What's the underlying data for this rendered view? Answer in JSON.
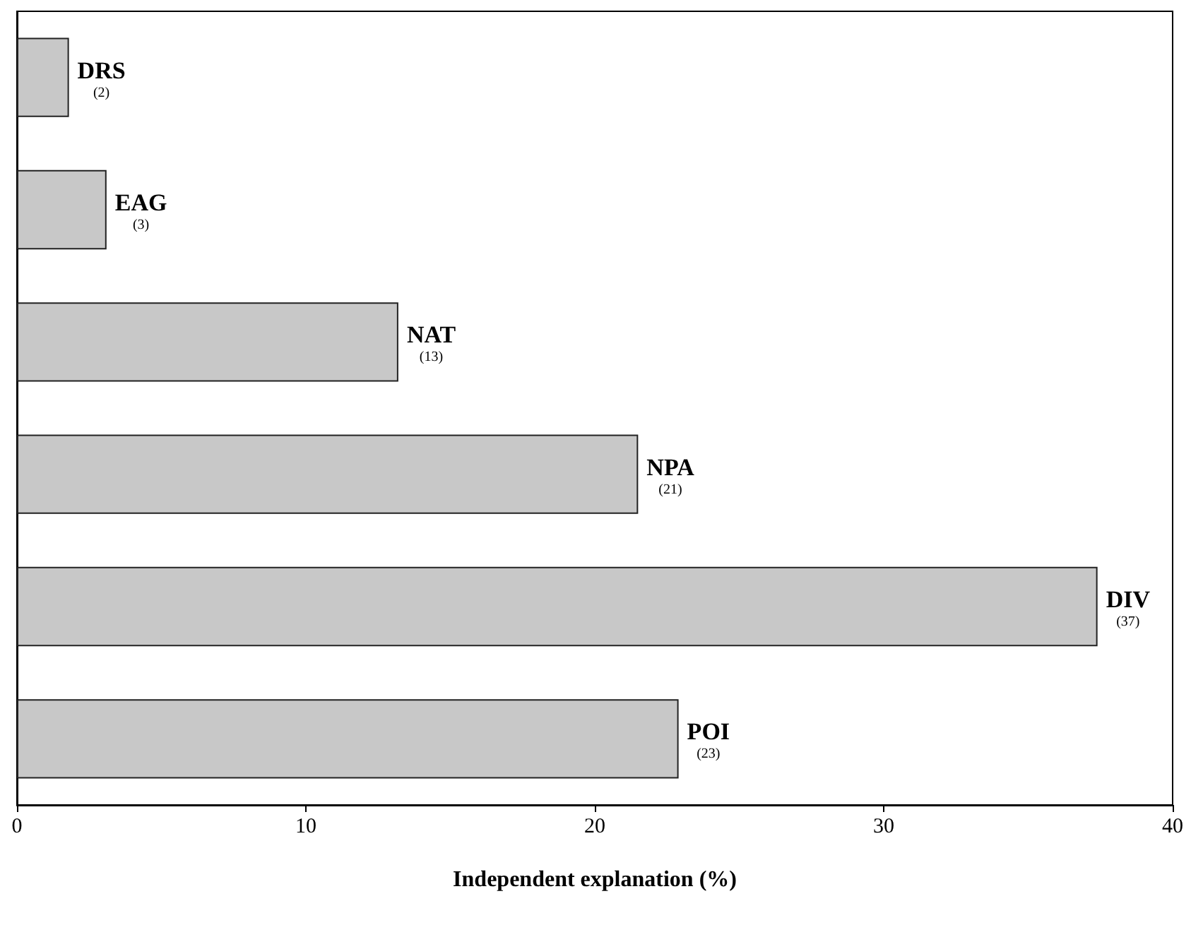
{
  "chart_data": {
    "type": "bar",
    "orientation": "horizontal",
    "xlabel": "Independent explanation (%)",
    "categories": [
      "DRS",
      "EAG",
      "NAT",
      "NPA",
      "DIV",
      "POI"
    ],
    "values": [
      1.8,
      3.1,
      13.2,
      21.5,
      37.4,
      22.9
    ],
    "value_labels": [
      "(2)",
      "(3)",
      "(13)",
      "(21)",
      "(37)",
      "(23)"
    ],
    "color": "#c8c8c8",
    "xlim": [
      0,
      40
    ],
    "xticks": [
      0,
      10,
      20,
      30,
      40
    ],
    "grid": false
  }
}
